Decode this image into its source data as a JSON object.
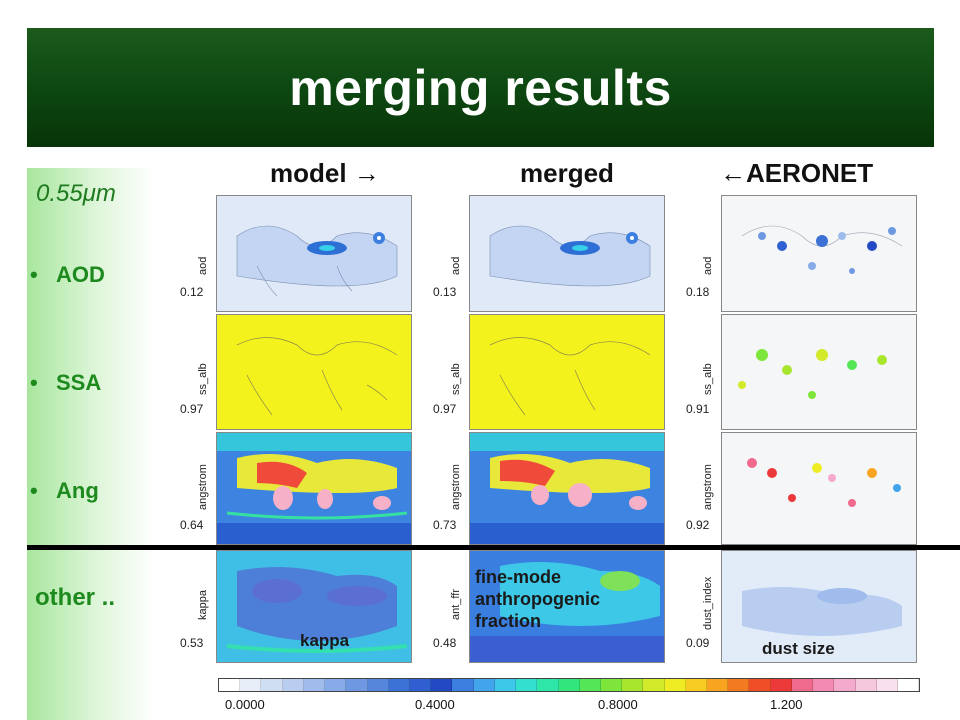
{
  "title": "merging results",
  "wavelength": "0.55",
  "wavelength_unit": "μm",
  "bullets": [
    "AOD",
    "SSA",
    "Ang"
  ],
  "bullet_glyph": "•",
  "other_label": "other ..",
  "columns": {
    "model": "model →",
    "merged": "merged",
    "aeronet": "←AERONET"
  },
  "rows": [
    {
      "label": "aod",
      "values": [
        "0.12",
        "0.13",
        "0.18"
      ]
    },
    {
      "label": "ss_alb",
      "values": [
        "0.97",
        "0.97",
        "0.91"
      ]
    },
    {
      "label": "angstrom",
      "values": [
        "0.64",
        "0.73",
        "0.92"
      ]
    },
    {
      "labels": [
        "kappa",
        "ant_ffr",
        "dust_index"
      ],
      "values": [
        "0.53",
        "0.48",
        "0.09"
      ]
    }
  ],
  "notes": {
    "kappa": "kappa",
    "fine_mode": [
      "fine-mode",
      "anthropogenic",
      "fraction"
    ],
    "dust_size": "dust size"
  },
  "colorbar": {
    "ticks": [
      "0.0000",
      "0.4000",
      "0.8000",
      "1.200"
    ],
    "colors": [
      "#ffffff",
      "#e8eef8",
      "#d0def4",
      "#b8cdf0",
      "#9fbcec",
      "#87abe8",
      "#6e99e2",
      "#5586dc",
      "#3c72d6",
      "#2f5fd0",
      "#2449c4",
      "#3d7fe0",
      "#42a4ea",
      "#3cc8e8",
      "#33e0d0",
      "#2ee6a8",
      "#33e67c",
      "#54e654",
      "#7ee63a",
      "#a8e62e",
      "#d2ea2a",
      "#f0ec24",
      "#f8cc22",
      "#f8a420",
      "#f47a22",
      "#f04e26",
      "#ec3a3a",
      "#f06a8e",
      "#f28ab2",
      "#f4aacc",
      "#f6c8de",
      "#f8e0ec",
      "#ffffff"
    ]
  },
  "colors": {
    "title_bar": "#0e4a12",
    "accent_green": "#1e8a1e"
  }
}
